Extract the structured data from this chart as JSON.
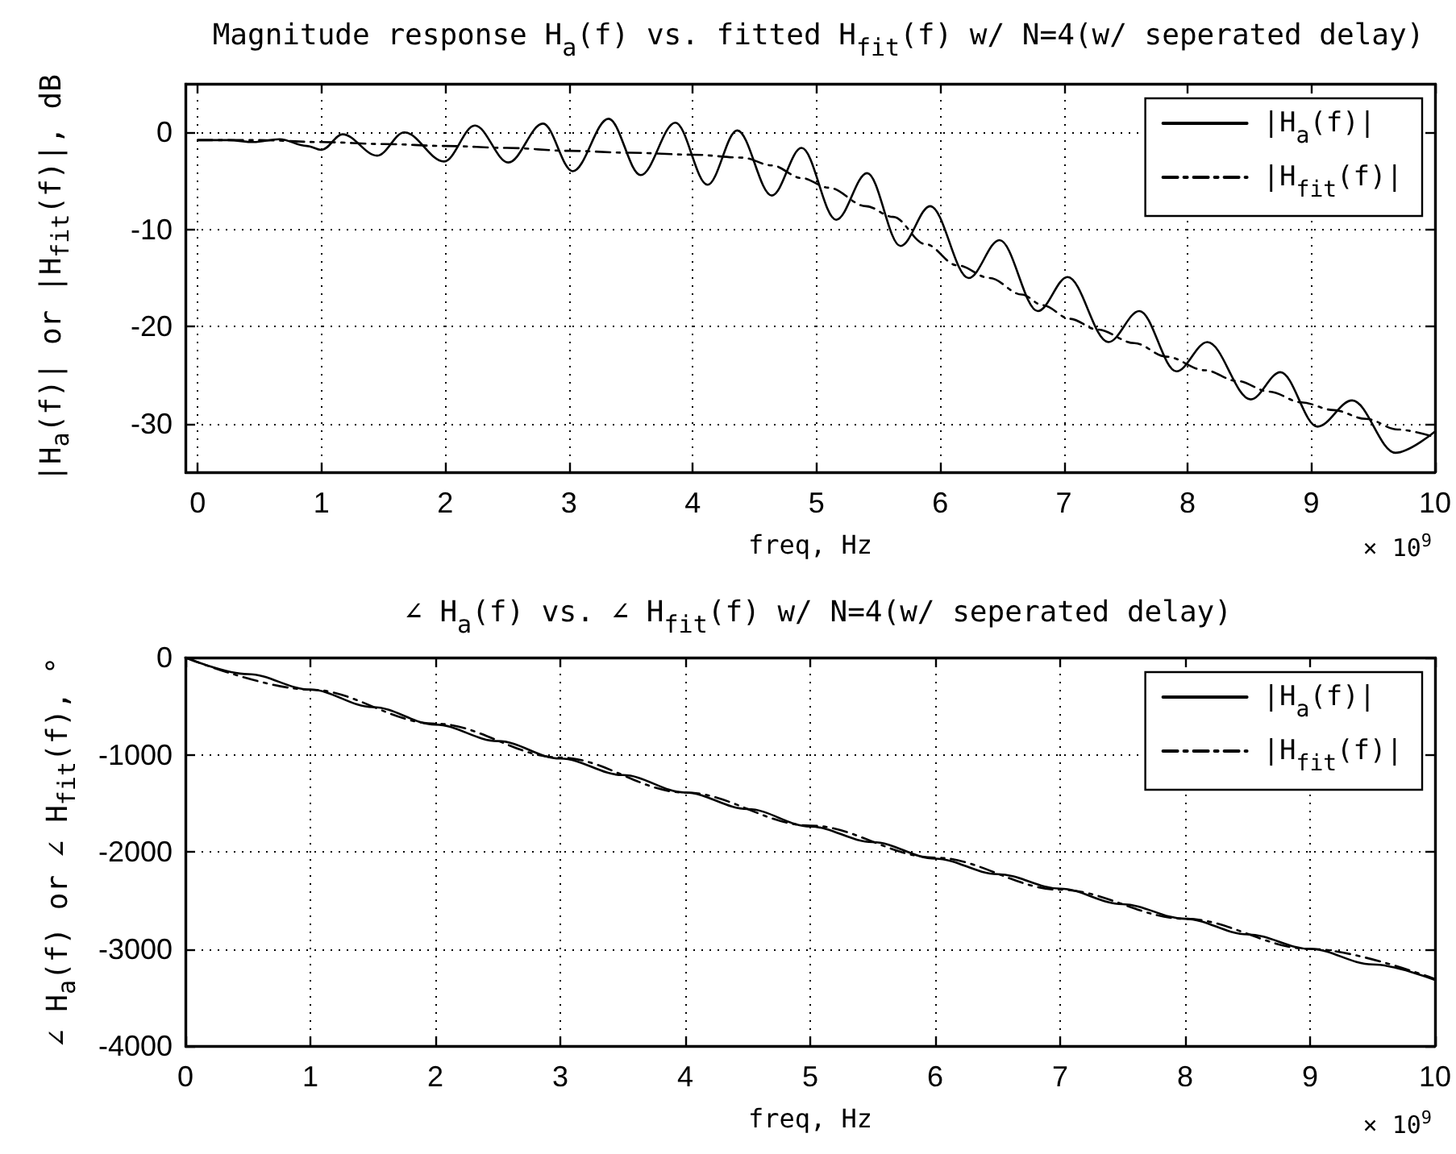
{
  "chart_data": [
    {
      "type": "line",
      "title": "Magnitude response H$_{a}$(f) vs. fitted H$_{fit}$(f) w/ N=4(w/ seperated delay)",
      "xlabel": "freq, Hz",
      "ylabel": "|H$_{a}$(f)| or |H$_{fit}$(f)|, dB",
      "annotations": [
        "× 10$^{9}$"
      ],
      "xlim": [
        -0.1,
        10
      ],
      "xticks": [
        0,
        1,
        2,
        3,
        4,
        5,
        6,
        7,
        8,
        9,
        10
      ],
      "ylim": [
        -35,
        5
      ],
      "yticks": [
        -30,
        -20,
        -10,
        0
      ],
      "grid": true,
      "legend": "top right",
      "marker": "none",
      "series": [
        {
          "name": "|H$_{a}$(f)|",
          "color": "#000000",
          "line_style": "solid",
          "x": [
            0,
            0.25,
            0.45,
            0.66,
            0.88,
            1.0,
            1.17,
            1.45,
            1.67,
            1.99,
            2.24,
            2.51,
            2.79,
            3.03,
            3.32,
            3.58,
            3.86,
            4.12,
            4.36,
            4.64,
            4.88,
            5.16,
            5.41,
            5.68,
            5.92,
            6.23,
            6.48,
            6.79,
            7.03,
            7.36,
            7.61,
            7.91,
            8.16,
            8.51,
            8.75,
            9.05,
            9.33,
            9.68,
            10.0
          ],
          "values": [
            -0.8,
            -0.8,
            -1.0,
            -0.7,
            -1.4,
            -1.8,
            -0.2,
            -2.4,
            0,
            -3.0,
            0.7,
            -3.1,
            0.9,
            -4.0,
            1.4,
            -4.4,
            1.0,
            -5.4,
            0.2,
            -6.5,
            -1.6,
            -9.0,
            -4.2,
            -11.7,
            -7.6,
            -15.0,
            -11.1,
            -18.4,
            -14.9,
            -21.6,
            -18.4,
            -24.6,
            -21.6,
            -27.5,
            -24.7,
            -30.3,
            -27.6,
            -33.0,
            -30.8
          ]
        },
        {
          "name": "|H$_{fit}$(f)|",
          "color": "#000000",
          "line_style": "dashdot",
          "x": [
            0,
            0.5,
            1.0,
            1.5,
            2.0,
            2.5,
            3.0,
            3.5,
            4.0,
            4.4,
            4.64,
            4.88,
            5.1,
            5.4,
            5.62,
            5.88,
            6.14,
            6.4,
            6.66,
            6.83,
            7.05,
            7.27,
            7.57,
            7.83,
            8.14,
            8.4,
            8.66,
            8.92,
            9.18,
            9.44,
            9.7,
            10.0
          ],
          "values": [
            -0.8,
            -0.8,
            -1.0,
            -1.2,
            -1.4,
            -1.6,
            -1.9,
            -2.1,
            -2.3,
            -2.6,
            -3.4,
            -4.7,
            -5.7,
            -7.6,
            -8.7,
            -11.5,
            -13.7,
            -15.0,
            -16.7,
            -17.8,
            -19.2,
            -20.3,
            -21.7,
            -23.1,
            -24.5,
            -25.6,
            -26.7,
            -27.8,
            -28.6,
            -29.5,
            -30.6,
            -31.4
          ]
        }
      ]
    },
    {
      "type": "line",
      "title": "∠ H$_{a}$(f) vs. ∠ H$_{fit}$(f) w/ N=4(w/ seperated delay)",
      "xlabel": "freq, Hz",
      "ylabel": "∠ H$_{a}$(f) or ∠ H$_{fit}$(f), °",
      "annotations": [
        "× 10$^{9}$"
      ],
      "xlim": [
        0,
        10
      ],
      "xticks": [
        0,
        1,
        2,
        3,
        4,
        5,
        6,
        7,
        8,
        9,
        10
      ],
      "ylim": [
        -4000,
        0
      ],
      "yticks": [
        -4000,
        -3000,
        -2000,
        -1000,
        0
      ],
      "grid": true,
      "legend": "top right",
      "marker": "none",
      "series": [
        {
          "name": "|H$_{a}$(f)|",
          "color": "#000000",
          "line_style": "solid",
          "x": [
            0,
            0.5,
            1,
            1.5,
            2,
            2.5,
            3,
            3.5,
            4,
            4.5,
            5,
            5.5,
            6,
            6.5,
            7,
            7.5,
            8,
            8.5,
            9,
            9.5,
            10
          ],
          "values": [
            0,
            -170,
            -330,
            -510,
            -690,
            -860,
            -1040,
            -1210,
            -1390,
            -1560,
            -1740,
            -1900,
            -2070,
            -2230,
            -2380,
            -2540,
            -2690,
            -2850,
            -3000,
            -3160,
            -3320
          ]
        },
        {
          "name": "|H$_{fit}$(f)|",
          "color": "#000000",
          "line_style": "dashdot",
          "x": [
            0,
            1,
            2,
            3,
            4,
            5,
            6,
            7,
            8,
            9,
            10
          ],
          "values": [
            0,
            -330,
            -680,
            -1030,
            -1390,
            -1730,
            -2060,
            -2390,
            -2690,
            -3000,
            -3310
          ]
        }
      ]
    }
  ]
}
